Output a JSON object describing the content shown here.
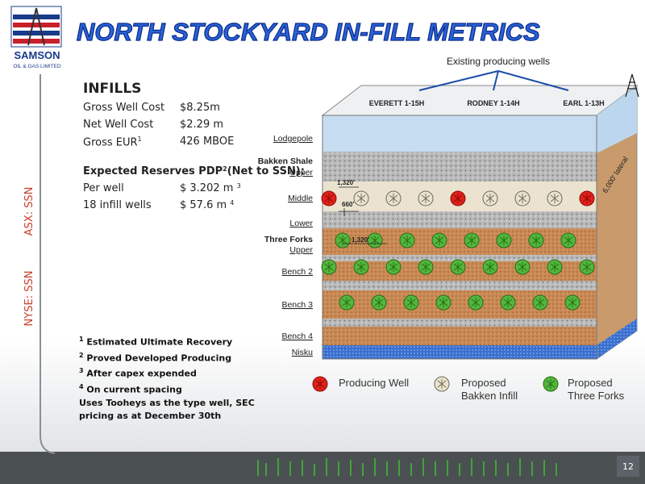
{
  "logo": {
    "name": "SAMSON",
    "sub": "OIL & GAS LIMITED"
  },
  "header": {
    "title": "NORTH STOCKYARD IN-FILL METRICS"
  },
  "sidebar": {
    "tickers": [
      "ASX: SSN",
      "NYSE: SSN"
    ]
  },
  "infills": {
    "heading": "INFILLS",
    "rows": [
      {
        "label": "Gross Well Cost",
        "value": "$8.25m"
      },
      {
        "label": "Net Well Cost",
        "value": "$2.29 m"
      },
      {
        "label": "Gross EUR",
        "sup": "1",
        "value": "426 MBOE"
      }
    ]
  },
  "reserves": {
    "heading": "Expected Reserves PDP",
    "heading_sup": "2",
    "heading_rest": "(Net to SSN):",
    "rows": [
      {
        "label": "Per well",
        "value": "$ 3.202 m",
        "sup": "3"
      },
      {
        "label": "18 infill wells",
        "value": "$ 57.6 m",
        "sup": "4"
      }
    ]
  },
  "footnotes": [
    {
      "sup": "1",
      "text": "Estimated Ultimate Recovery"
    },
    {
      "sup": "2",
      "text": "Proved Developed Producing"
    },
    {
      "sup": "3",
      "text": "After capex expended"
    },
    {
      "sup": "4",
      "text": "On current spacing"
    }
  ],
  "note": "Uses Tooheys as the type well, SEC pricing as at December 30th",
  "diagram": {
    "caption": "Existing producing wells",
    "wells": [
      "EVERETT  1-15H",
      "RODNEY  1-14H",
      "EARL 1-13H"
    ],
    "layers": [
      "Lodgepole",
      "Bakken Shale",
      "Upper",
      "Middle",
      "Lower",
      "Three Forks",
      "Upper",
      "Bench 2",
      "Bench 3",
      "Bench 4",
      "Nisku"
    ],
    "annotations": [
      "1,320'",
      "660'",
      "1,320'",
      "6,000' lateral"
    ]
  },
  "legend": [
    "Producing Well",
    "Proposed Bakken Infill",
    "Proposed Three Forks"
  ],
  "page_number": "12"
}
